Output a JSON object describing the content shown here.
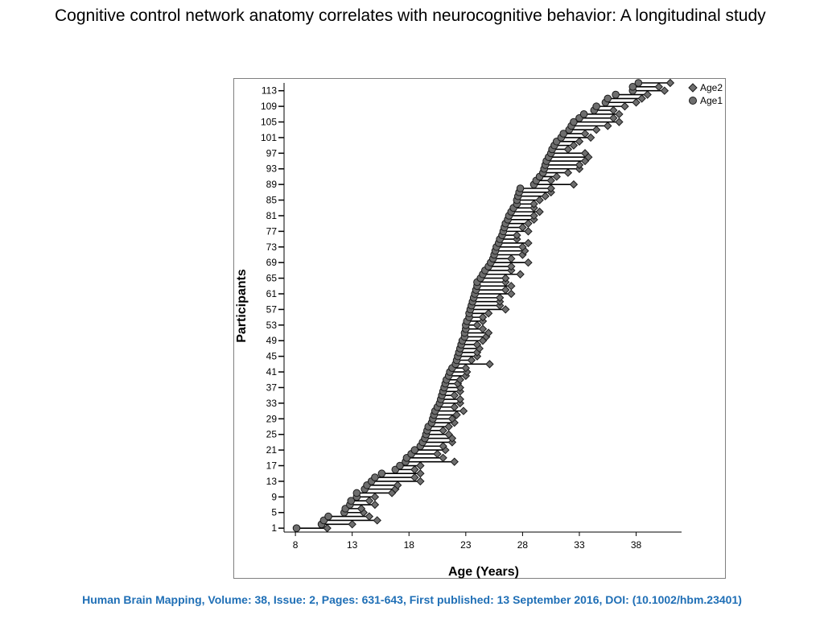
{
  "title": "Cognitive control network anatomy correlates with neurocognitive behavior: A longitudinal study",
  "citation": "Human Brain Mapping, Volume: 38, Issue: 2, Pages: 631-643, First published: 13 September 2016, DOI: (10.1002/hbm.23401)",
  "colors": {
    "marker_fill": "#6e6e6e",
    "marker_stroke": "#1a1a1a",
    "line": "#000000",
    "citation": "#1f6fb6"
  },
  "chart_data": {
    "type": "scatter",
    "subtype": "dumbbell",
    "title": "",
    "xlabel": "Age (Years)",
    "ylabel": "Participants",
    "xlim": [
      7,
      42
    ],
    "ylim": [
      0,
      115
    ],
    "xticks": [
      8,
      13,
      18,
      23,
      28,
      33,
      38
    ],
    "yticks": [
      1,
      5,
      9,
      13,
      17,
      21,
      25,
      29,
      33,
      37,
      41,
      45,
      49,
      53,
      57,
      61,
      65,
      69,
      73,
      77,
      81,
      85,
      89,
      93,
      97,
      101,
      105,
      109,
      113
    ],
    "grid": false,
    "legend_position": "top-right",
    "series": [
      {
        "name": "Age2",
        "marker": "diamond"
      },
      {
        "name": "Age1",
        "marker": "circle"
      }
    ],
    "participants": [
      1,
      2,
      3,
      4,
      5,
      6,
      7,
      8,
      9,
      10,
      11,
      12,
      13,
      14,
      15,
      16,
      17,
      18,
      19,
      20,
      21,
      22,
      23,
      24,
      25,
      26,
      27,
      28,
      29,
      30,
      31,
      32,
      33,
      34,
      35,
      36,
      37,
      38,
      39,
      40,
      41,
      42,
      43,
      44,
      45,
      46,
      47,
      48,
      49,
      50,
      51,
      52,
      53,
      54,
      55,
      56,
      57,
      58,
      59,
      60,
      61,
      62,
      63,
      64,
      65,
      66,
      67,
      68,
      69,
      70,
      71,
      72,
      73,
      74,
      75,
      76,
      77,
      78,
      79,
      80,
      81,
      82,
      83,
      84,
      85,
      86,
      87,
      88,
      89,
      90,
      91,
      92,
      93,
      94,
      95,
      96,
      97,
      98,
      99,
      100,
      101,
      102,
      103,
      104,
      105,
      106,
      107,
      108,
      109,
      110,
      111,
      112,
      113,
      114,
      115
    ],
    "age1": [
      8.1,
      10.3,
      10.5,
      10.9,
      12.3,
      12.4,
      12.8,
      12.9,
      13.4,
      13.4,
      14.1,
      14.3,
      14.7,
      15.0,
      15.6,
      16.8,
      17.2,
      17.7,
      17.8,
      18.2,
      18.5,
      19.0,
      19.2,
      19.4,
      19.5,
      19.6,
      19.7,
      20.0,
      20.1,
      20.2,
      20.3,
      20.5,
      20.7,
      20.8,
      20.9,
      21.0,
      21.1,
      21.2,
      21.3,
      21.5,
      21.6,
      21.8,
      22.1,
      22.2,
      22.3,
      22.4,
      22.5,
      22.6,
      22.7,
      22.9,
      22.9,
      23.0,
      23.0,
      23.1,
      23.3,
      23.3,
      23.4,
      23.5,
      23.6,
      23.7,
      23.8,
      23.9,
      24.0,
      24.0,
      24.3,
      24.5,
      24.7,
      25.0,
      25.2,
      25.4,
      25.5,
      25.6,
      25.7,
      25.9,
      26.0,
      26.2,
      26.3,
      26.4,
      26.5,
      26.7,
      26.8,
      27.0,
      27.2,
      27.5,
      27.5,
      27.6,
      27.7,
      27.8,
      29.0,
      29.2,
      29.5,
      29.8,
      29.9,
      30.0,
      30.1,
      30.3,
      30.5,
      30.6,
      30.8,
      31.0,
      31.4,
      31.6,
      32.1,
      32.3,
      32.5,
      33.0,
      33.4,
      34.3,
      34.5,
      35.3,
      35.5,
      36.2,
      37.7,
      37.7,
      38.2
    ],
    "age2": [
      10.8,
      13.0,
      15.2,
      14.5,
      14.0,
      13.8,
      15.0,
      14.5,
      15.0,
      16.5,
      16.8,
      17.0,
      19.0,
      18.5,
      19.0,
      18.5,
      19.0,
      22.0,
      21.0,
      20.5,
      21.2,
      21.0,
      21.8,
      21.8,
      21.5,
      21.0,
      21.5,
      22.0,
      21.8,
      22.2,
      22.8,
      22.0,
      22.5,
      22.5,
      22.0,
      22.5,
      22.5,
      22.3,
      22.5,
      23.0,
      23.1,
      23.0,
      25.1,
      23.5,
      24.0,
      24.0,
      24.2,
      24.0,
      24.5,
      24.8,
      25.0,
      24.5,
      24.0,
      24.5,
      24.5,
      25.0,
      26.5,
      26.0,
      26.0,
      26.0,
      27.0,
      26.5,
      27.0,
      26.5,
      26.5,
      27.8,
      27.0,
      27.0,
      28.5,
      27.0,
      28.0,
      28.2,
      28.0,
      28.5,
      27.5,
      27.5,
      28.5,
      28.0,
      28.5,
      29.0,
      29.0,
      29.5,
      29.0,
      29.0,
      29.5,
      30.0,
      30.5,
      30.5,
      32.5,
      30.5,
      31.0,
      32.0,
      33.0,
      33.0,
      33.5,
      33.8,
      33.5,
      32.0,
      32.5,
      33.0,
      34.0,
      33.5,
      34.5,
      35.5,
      36.5,
      36.0,
      36.5,
      36.0,
      37.0,
      38.0,
      38.5,
      39.0,
      40.5,
      40.0,
      41.0
    ]
  },
  "ui": {
    "legend_age2": "Age2",
    "legend_age1": "Age1"
  }
}
